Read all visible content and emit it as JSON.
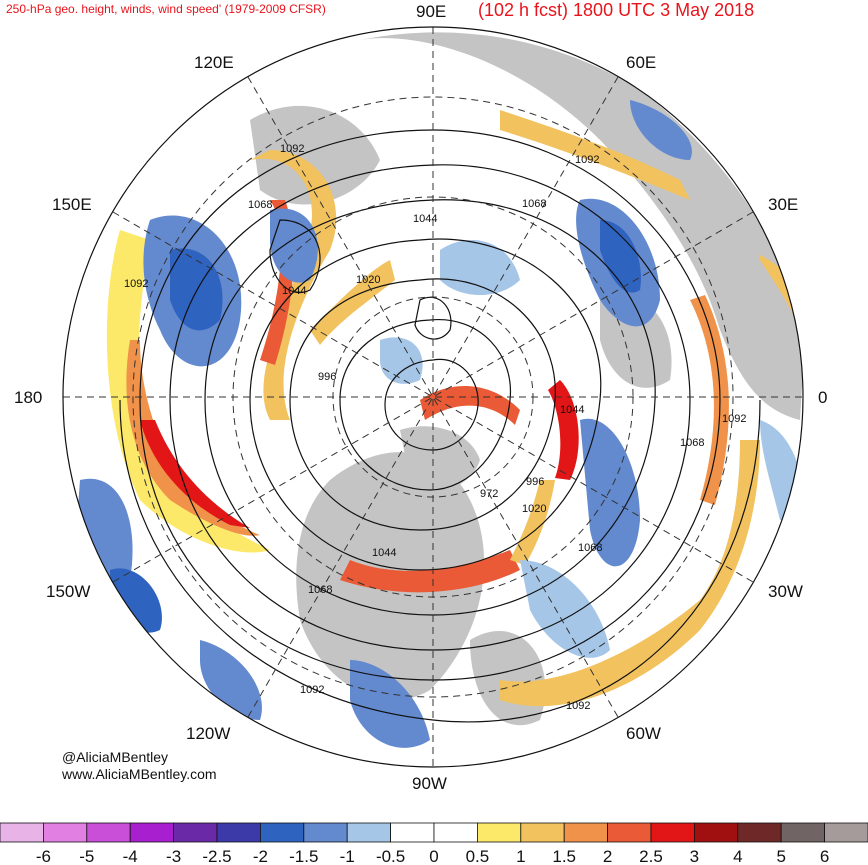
{
  "title_left": "250-hPa geo. height, winds, wind speed' (1979-2009 CFSR)",
  "title_right": "(102 h fcst) 1800 UTC 3 May 2018",
  "credits": [
    "@AliciaMBentley",
    "www.AliciaMBentley.com"
  ],
  "longitude_labels": [
    "90E",
    "60E",
    "30E",
    "0",
    "30W",
    "60W",
    "90W",
    "120W",
    "150W",
    "180",
    "150E",
    "120E"
  ],
  "contour_labels": [
    "1092",
    "1068",
    "1044",
    "1020",
    "996",
    "972",
    "1044",
    "1068",
    "1092",
    "1044",
    "1092",
    "1068",
    "1020",
    "996",
    "1068",
    "1092",
    "1044",
    "1068",
    "1020",
    "996",
    "1068",
    "1092",
    "1092",
    "1068"
  ],
  "colorbar": {
    "labels": [
      "-6",
      "-5",
      "-4",
      "-3",
      "-2.5",
      "-2",
      "-1.5",
      "-1",
      "-0.5",
      "0",
      "0.5",
      "1",
      "1.5",
      "2",
      "2.5",
      "3",
      "4",
      "5",
      "6"
    ],
    "colors": [
      "#e8b4e8",
      "#e27fe2",
      "#c94fd9",
      "#a81fd0",
      "#6a2aa8",
      "#3b3aa8",
      "#2f63c0",
      "#6389cf",
      "#a6c6e8",
      "#ffffff",
      "#ffffff",
      "#fce96a",
      "#f2c25e",
      "#f0924a",
      "#ea5a36",
      "#e21616",
      "#a01010",
      "#6e2828",
      "#706464",
      "#a69b9b"
    ]
  },
  "colors": {
    "title": "#e8141c",
    "land": "#bfbfbf",
    "positive": "#f2c25e",
    "negative": "#6389cf"
  }
}
